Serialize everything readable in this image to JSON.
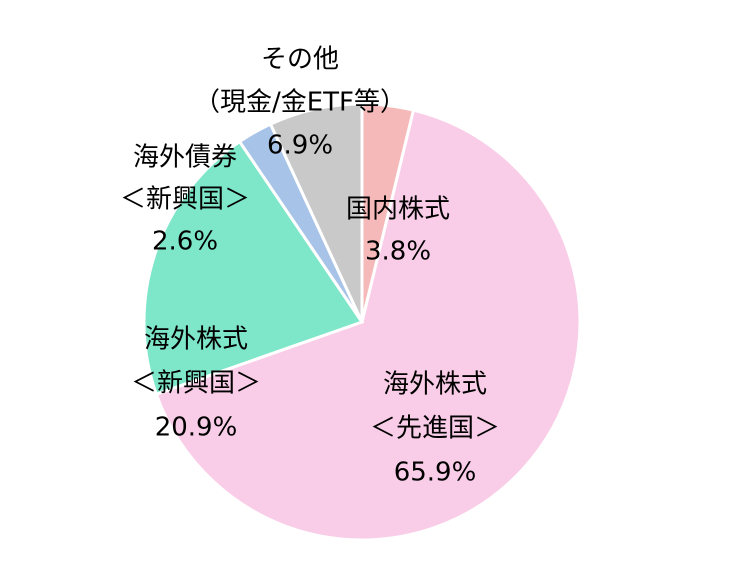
{
  "chart_data": {
    "type": "pie",
    "categories": [
      [
        "国内株式"
      ],
      [
        "海外株式",
        "＜先進国＞"
      ],
      [
        "海外株式",
        "＜新興国＞"
      ],
      [
        "海外債券",
        "＜新興国＞"
      ],
      [
        "その他",
        "（現金/金ETF等）"
      ]
    ],
    "values": [
      3.8,
      65.9,
      20.9,
      2.6,
      6.9
    ],
    "value_labels": [
      "3.8%",
      "65.9%",
      "20.9%",
      "2.6%",
      "6.9%"
    ],
    "colors": [
      "#f6b9b9",
      "#f9cde7",
      "#7ee6c9",
      "#a8c3e8",
      "#c9c9c9"
    ]
  }
}
